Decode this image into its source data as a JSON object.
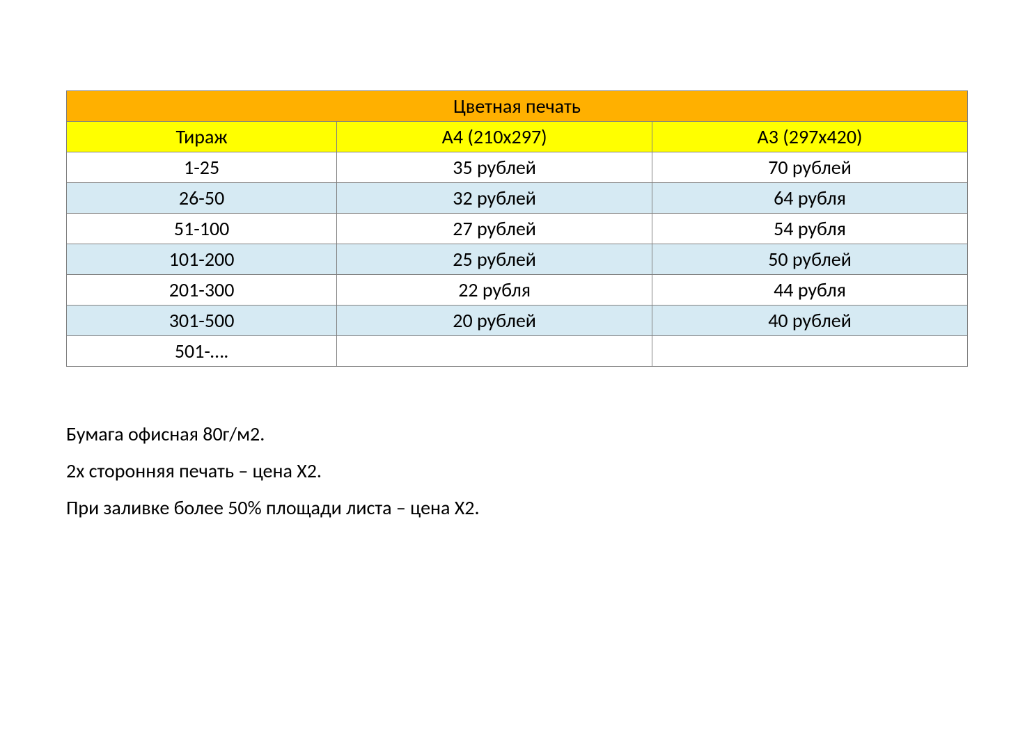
{
  "table": {
    "title": "Цветная печать",
    "title_bg": "#ffb000",
    "header_bg": "#ffff00",
    "stripe_bg": "#d6eaf3",
    "border_color": "#808080",
    "font_size": 28,
    "columns": [
      "Тираж",
      "А4 (210х297)",
      "А3 (297х420)"
    ],
    "col_widths_pct": [
      30,
      35,
      35
    ],
    "rows": [
      {
        "cells": [
          "1-25",
          "35 рублей",
          "70 рублей"
        ],
        "stripe": false
      },
      {
        "cells": [
          "26-50",
          "32 рублей",
          "64 рубля"
        ],
        "stripe": true
      },
      {
        "cells": [
          "51-100",
          "27 рублей",
          "54 рубля"
        ],
        "stripe": false
      },
      {
        "cells": [
          "101-200",
          "25 рублей",
          "50 рублей"
        ],
        "stripe": true
      },
      {
        "cells": [
          "201-300",
          "22 рубля",
          "44 рубля"
        ],
        "stripe": false
      },
      {
        "cells": [
          "301-500",
          "20 рублей",
          "40 рублей"
        ],
        "stripe": true
      },
      {
        "cells": [
          "501-….",
          "",
          ""
        ],
        "stripe": false
      }
    ]
  },
  "notes": [
    "Бумага офисная 80г/м2.",
    "2х сторонняя печать – цена Х2.",
    "При заливке более 50% площади листа – цена Х2."
  ]
}
